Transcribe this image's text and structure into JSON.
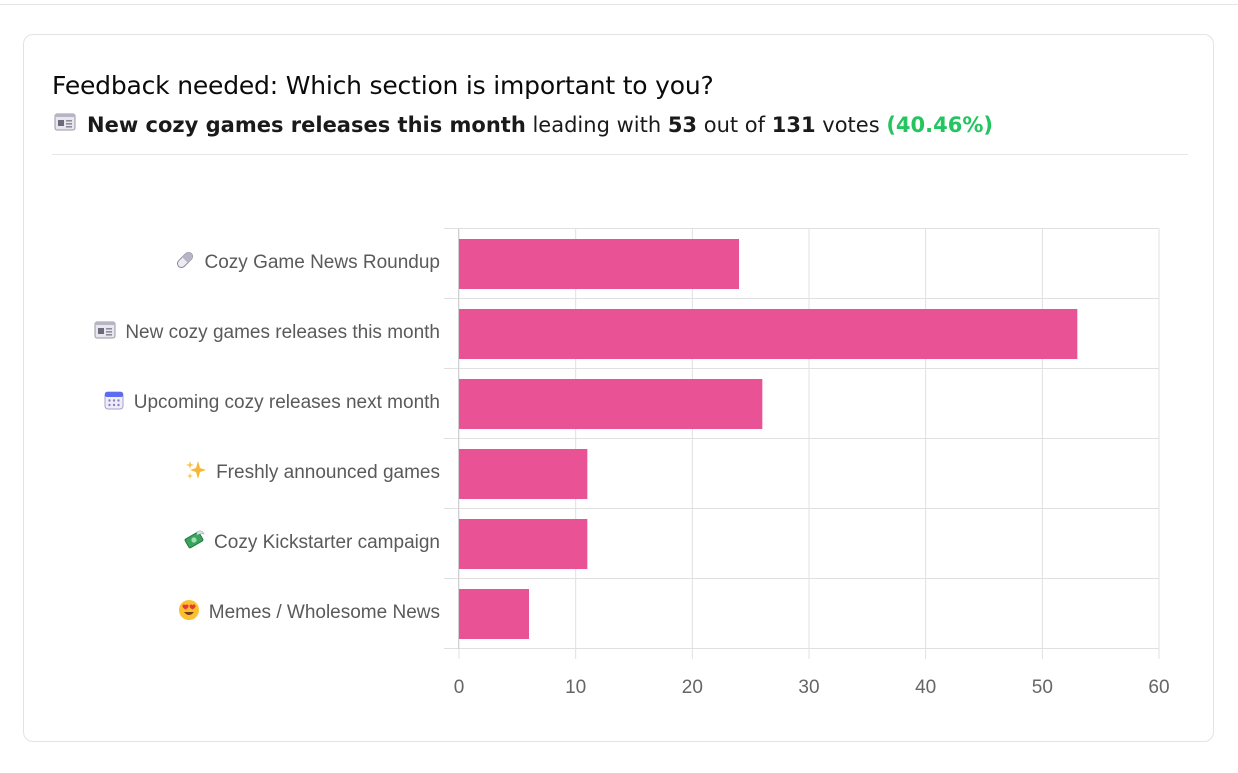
{
  "poll": {
    "title": "Feedback needed: Which section is important to you?",
    "leader": {
      "icon": "newspaper-icon",
      "name": "New cozy games releases this month",
      "text_leading": "leading with",
      "votes": "53",
      "text_out_of": "out of",
      "total": "131",
      "text_votes": "votes",
      "percent": "(40.46%)"
    }
  },
  "colors": {
    "bar": "#e95396",
    "accent_green": "#22c55e",
    "grid": "#e0e0e0"
  },
  "chart_data": {
    "type": "bar",
    "orientation": "horizontal",
    "categories": [
      {
        "icon": "pill-icon",
        "label": "Cozy Game News Roundup"
      },
      {
        "icon": "newspaper-icon",
        "label": "New cozy games releases this month"
      },
      {
        "icon": "calendar-icon",
        "label": "Upcoming cozy releases next month"
      },
      {
        "icon": "sparkles-icon",
        "label": "Freshly announced games"
      },
      {
        "icon": "money-with-wings-icon",
        "label": "Cozy Kickstarter campaign"
      },
      {
        "icon": "heart-eyes-icon",
        "label": "Memes / Wholesome News"
      }
    ],
    "values": [
      24,
      53,
      26,
      11,
      11,
      6
    ],
    "xlim": [
      0,
      60
    ],
    "xticks": [
      "0",
      "10",
      "20",
      "30",
      "40",
      "50",
      "60"
    ],
    "grid": true,
    "title": "",
    "xlabel": "",
    "ylabel": ""
  }
}
